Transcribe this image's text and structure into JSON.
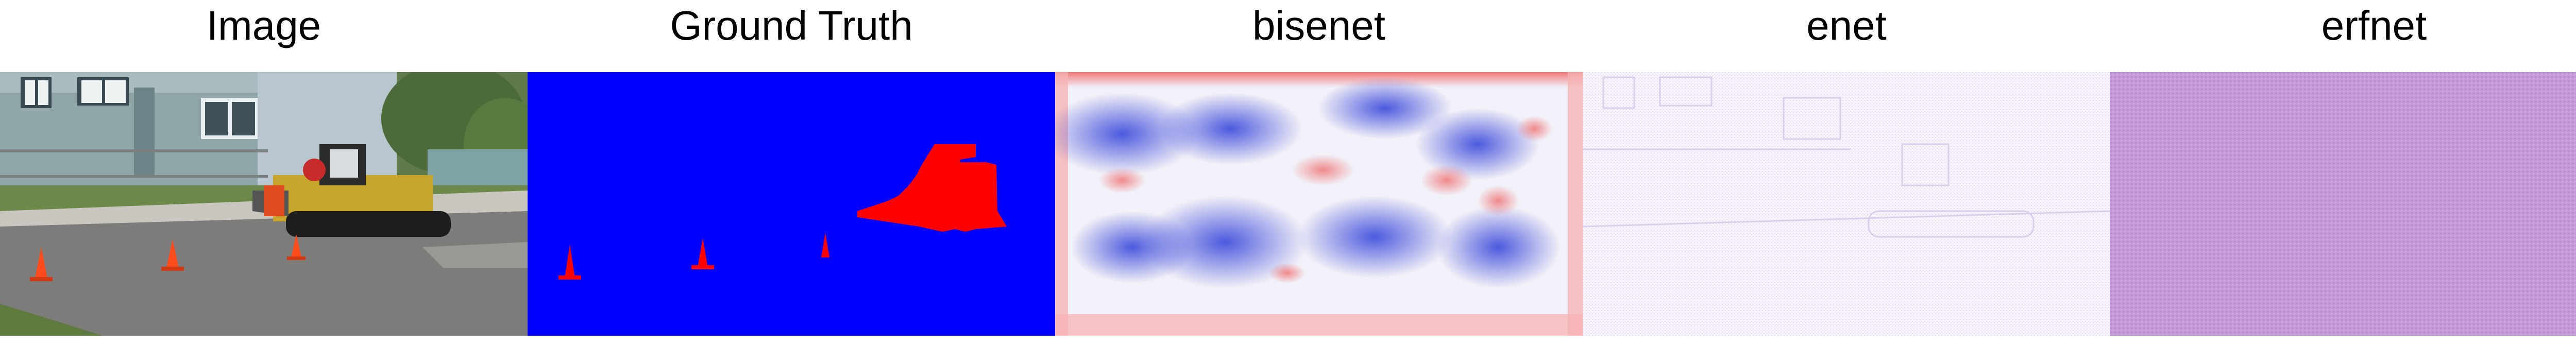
{
  "panels": [
    {
      "title": "Image",
      "icon": "photo-icon"
    },
    {
      "title": "Ground Truth",
      "icon": "segmentation-mask-icon"
    },
    {
      "title": "bisenet",
      "icon": "heatmap-icon"
    },
    {
      "title": "enet",
      "icon": "heatmap-icon"
    },
    {
      "title": "erfnet",
      "icon": "heatmap-icon"
    }
  ],
  "colors": {
    "background_class": "#0000ff",
    "target_class": "#ff0000",
    "enet_tint": "#f4f0fa",
    "erfnet_tint": "#c49ad6"
  }
}
